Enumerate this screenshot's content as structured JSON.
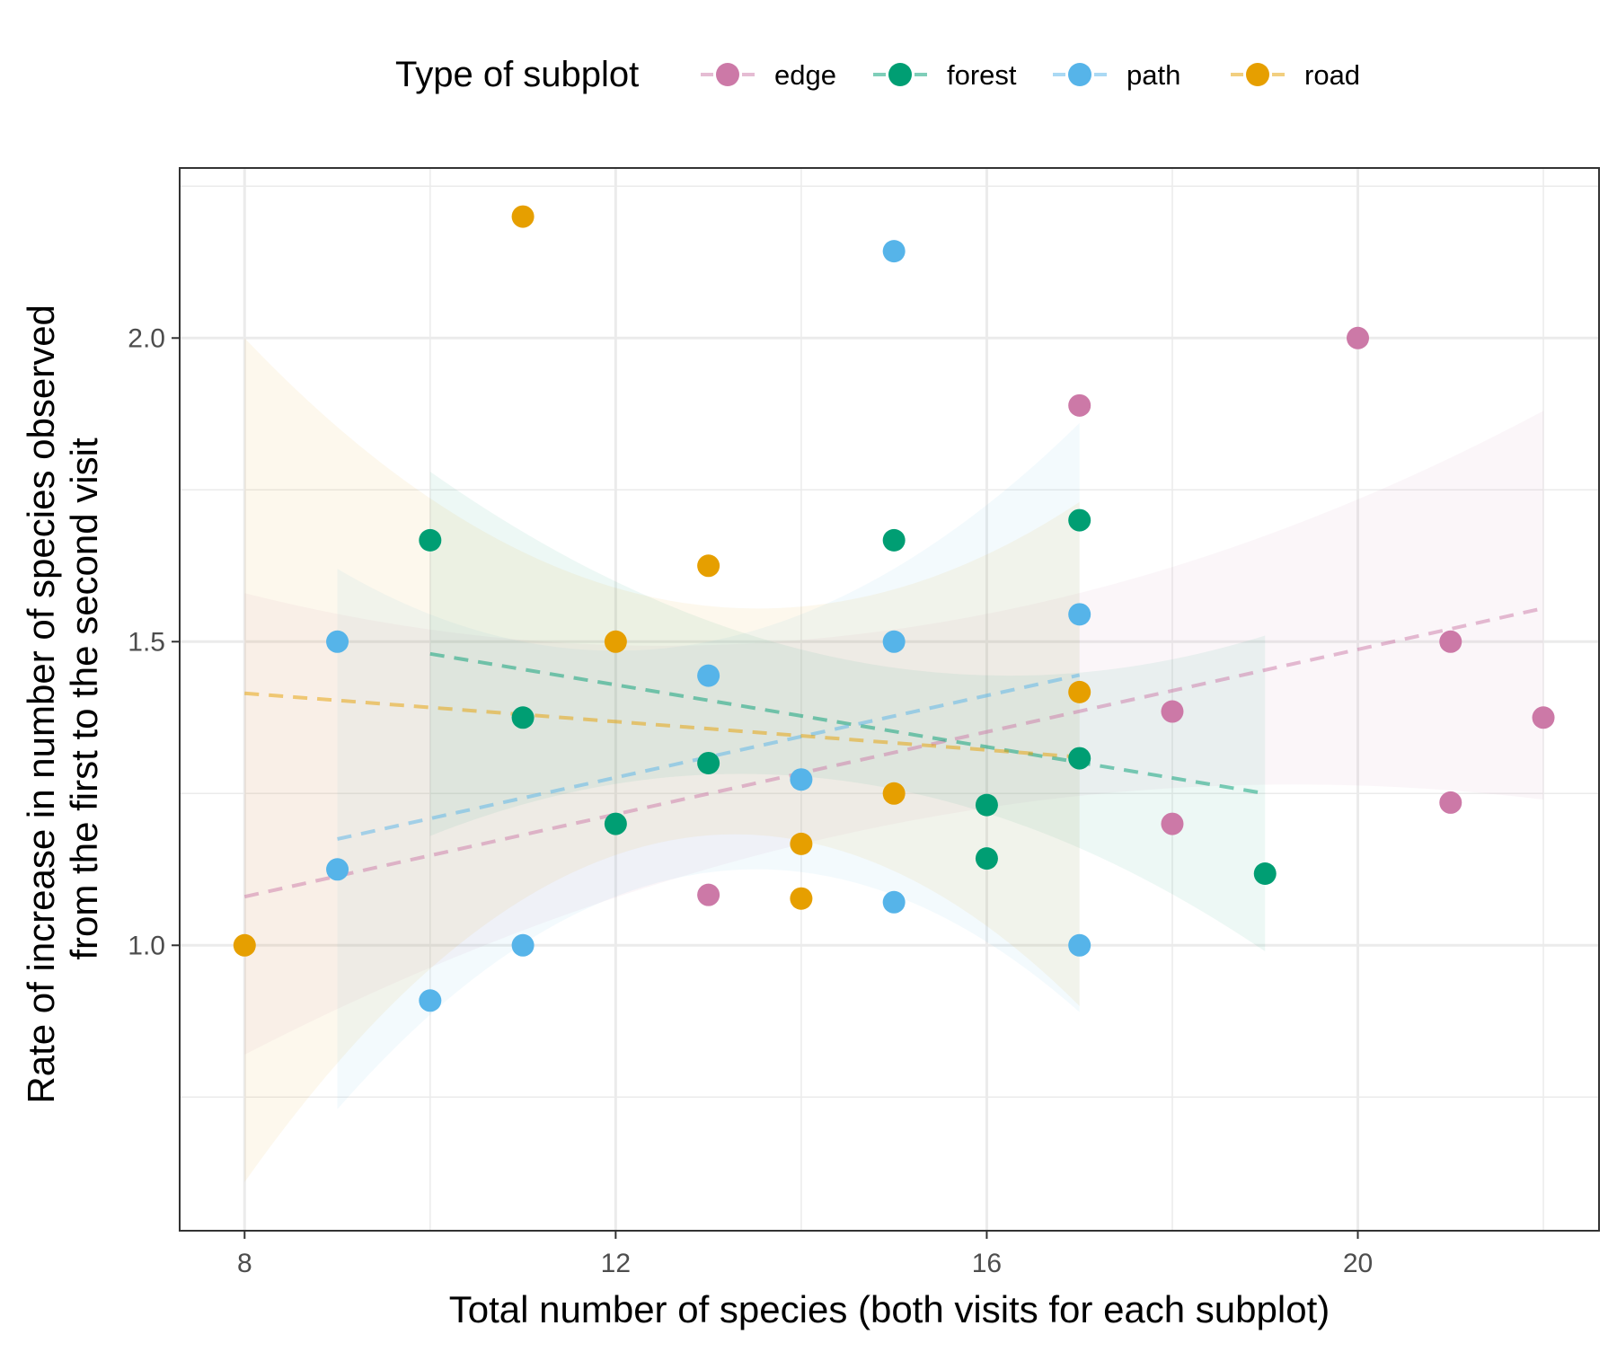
{
  "chart_data": {
    "type": "scatter",
    "title": "",
    "xlabel": "Total number of species (both visits for each subplot)",
    "ylabel": "Rate of increase in number of species observed\nfrom the first to the second visit",
    "ylabel_lines": [
      "Rate of increase in number of species observed",
      "from the first to the second visit"
    ],
    "xlim": [
      7.3,
      22.6
    ],
    "ylim": [
      0.53,
      2.28
    ],
    "x_ticks": [
      8,
      12,
      16,
      20
    ],
    "x_tick_labels": [
      "8",
      "12",
      "16",
      "20"
    ],
    "y_ticks": [
      1.0,
      1.5,
      2.0
    ],
    "y_tick_labels": [
      "1.0",
      "1.5",
      "2.0"
    ],
    "grid": true,
    "legend": {
      "title": "Type of subplot",
      "position": "top"
    },
    "series": [
      {
        "name": "edge",
        "color": "#CC79A7",
        "points": [
          {
            "x": 13,
            "y": 1.083
          },
          {
            "x": 17,
            "y": 1.889
          },
          {
            "x": 18,
            "y": 1.385
          },
          {
            "x": 18,
            "y": 1.2
          },
          {
            "x": 20,
            "y": 2.0
          },
          {
            "x": 21,
            "y": 1.5
          },
          {
            "x": 21,
            "y": 1.235
          },
          {
            "x": 22,
            "y": 1.375
          }
        ],
        "fit": {
          "x": [
            8,
            22
          ],
          "y": [
            1.08,
            1.555
          ]
        },
        "ci": {
          "x": [
            8,
            15,
            22
          ],
          "upper": [
            1.58,
            1.52,
            1.88
          ],
          "lower": [
            0.82,
            1.2,
            1.24
          ]
        }
      },
      {
        "name": "forest",
        "color": "#009E73",
        "points": [
          {
            "x": 10,
            "y": 1.667
          },
          {
            "x": 11,
            "y": 1.375
          },
          {
            "x": 12,
            "y": 1.2
          },
          {
            "x": 13,
            "y": 1.3
          },
          {
            "x": 15,
            "y": 1.667
          },
          {
            "x": 16,
            "y": 1.231
          },
          {
            "x": 16,
            "y": 1.143
          },
          {
            "x": 17,
            "y": 1.7
          },
          {
            "x": 17,
            "y": 1.308
          },
          {
            "x": 19,
            "y": 1.118
          }
        ],
        "fit": {
          "x": [
            10,
            19
          ],
          "y": [
            1.48,
            1.25
          ]
        },
        "ci": {
          "x": [
            10,
            14.5,
            19
          ],
          "upper": [
            1.78,
            1.47,
            1.51
          ],
          "lower": [
            1.18,
            1.27,
            0.99
          ]
        }
      },
      {
        "name": "path",
        "color": "#56B4E9",
        "points": [
          {
            "x": 9,
            "y": 1.5
          },
          {
            "x": 9,
            "y": 1.125
          },
          {
            "x": 10,
            "y": 0.909
          },
          {
            "x": 11,
            "y": 1.0
          },
          {
            "x": 13,
            "y": 1.444
          },
          {
            "x": 14,
            "y": 1.273
          },
          {
            "x": 15,
            "y": 2.143
          },
          {
            "x": 15,
            "y": 1.5
          },
          {
            "x": 15,
            "y": 1.071
          },
          {
            "x": 17,
            "y": 1.545
          },
          {
            "x": 17,
            "y": 1.0
          }
        ],
        "fit": {
          "x": [
            9,
            17
          ],
          "y": [
            1.175,
            1.445
          ]
        },
        "ci": {
          "x": [
            9,
            13,
            17
          ],
          "upper": [
            1.62,
            1.5,
            1.86
          ],
          "lower": [
            0.73,
            1.12,
            0.89
          ]
        }
      },
      {
        "name": "road",
        "color": "#E69F00",
        "points": [
          {
            "x": 8,
            "y": 1.0
          },
          {
            "x": 11,
            "y": 2.2
          },
          {
            "x": 12,
            "y": 1.5
          },
          {
            "x": 13,
            "y": 1.625
          },
          {
            "x": 14,
            "y": 1.167
          },
          {
            "x": 14,
            "y": 1.077
          },
          {
            "x": 15,
            "y": 1.25
          },
          {
            "x": 17,
            "y": 1.417
          }
        ],
        "fit": {
          "x": [
            8,
            17
          ],
          "y": [
            1.415,
            1.31
          ]
        },
        "ci": {
          "x": [
            8,
            12.5,
            17
          ],
          "upper": [
            2.0,
            1.57,
            1.73
          ],
          "lower": [
            0.61,
            1.17,
            0.9
          ]
        }
      }
    ]
  }
}
